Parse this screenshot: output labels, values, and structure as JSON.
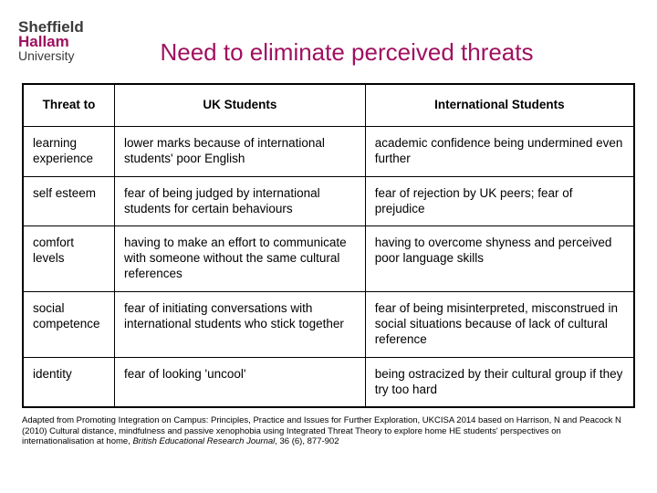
{
  "logo": {
    "line1": "Sheffield",
    "line2": "Hallam",
    "line3": "University"
  },
  "title": "Need to eliminate perceived threats",
  "table": {
    "headers": [
      "Threat to",
      "UK Students",
      "International Students"
    ],
    "rows": [
      [
        "learning experience",
        "lower marks because of international students' poor English",
        "academic confidence being undermined even further"
      ],
      [
        "self esteem",
        "fear of being judged by international students for certain behaviours",
        "fear of rejection by UK peers; fear of prejudice"
      ],
      [
        "comfort levels",
        "having to make an effort to communicate with someone without the same cultural references",
        "having to overcome shyness and perceived poor language skills"
      ],
      [
        "social competence",
        "fear of initiating conversations with international students who stick together",
        "fear of being misinterpreted, misconstrued in social situations because of lack of cultural reference"
      ],
      [
        "identity",
        "fear of looking 'uncool'",
        "being ostracized by their cultural group if they try too hard"
      ]
    ]
  },
  "footnote": {
    "pre": "Adapted from Promoting Integration on Campus: Principles, Practice and Issues for Further Exploration, UKCISA 2014 based on Harrison, N and Peacock N (2010) Cultural distance, mindfulness and passive xenophobia using Integrated Threat Theory to explore home HE students' perspectives on internationalisation at home, ",
    "ital": "British Educational Research Journal",
    "post": ", 36 (6), 877-902"
  }
}
